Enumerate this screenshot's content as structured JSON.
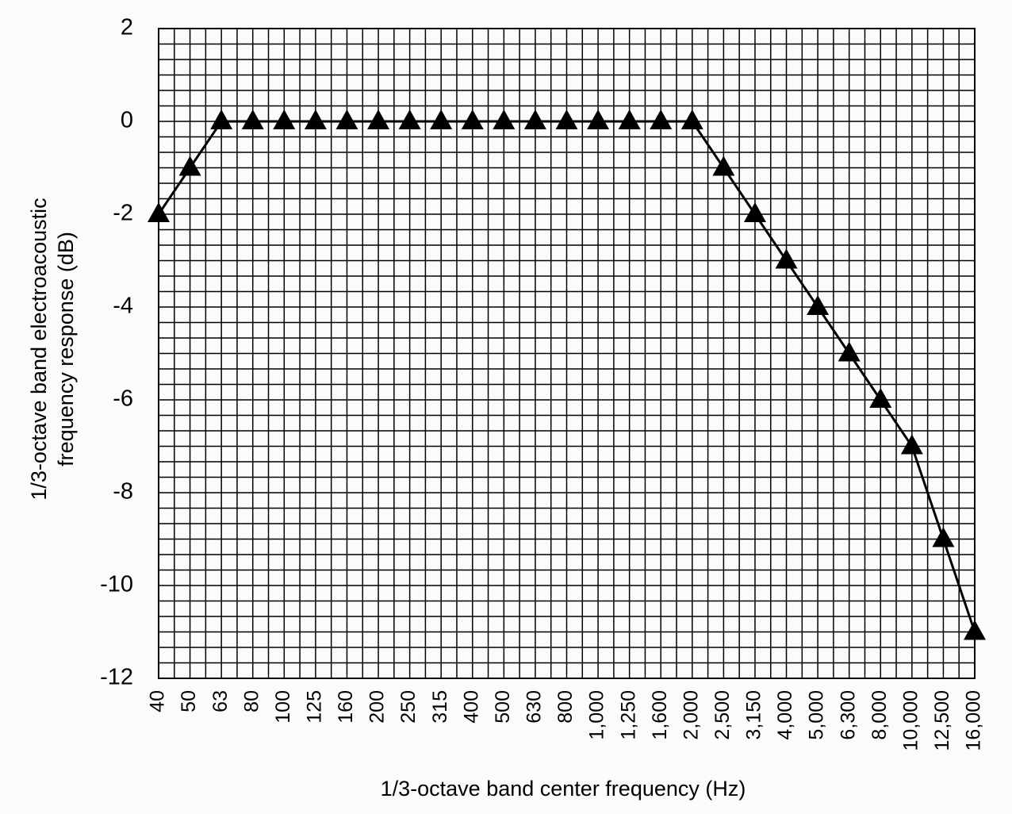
{
  "chart_data": {
    "type": "line",
    "xlabel": "1/3-octave band center frequency (Hz)",
    "ylabel": [
      "1/3-octave band electroacoustic",
      "frequency response (dB)"
    ],
    "categories": [
      "40",
      "50",
      "63",
      "80",
      "100",
      "125",
      "160",
      "200",
      "250",
      "315",
      "400",
      "500",
      "630",
      "800",
      "1,000",
      "1,250",
      "1,600",
      "2,000",
      "2,500",
      "3,150",
      "4,000",
      "5,000",
      "6,300",
      "8,000",
      "10,000",
      "12,500",
      "16,000"
    ],
    "series": [
      {
        "color": "#000000",
        "values": [
          -2,
          -1,
          0,
          0,
          0,
          0,
          0,
          0,
          0,
          0,
          0,
          0,
          0,
          0,
          0,
          0,
          0,
          0,
          -1,
          -2,
          -3,
          -4,
          -5,
          -6,
          -7,
          -9,
          -11
        ]
      }
    ],
    "ylim": [
      -12,
      2
    ],
    "yticks": [
      -12,
      -10,
      -8,
      -6,
      -4,
      -2,
      0,
      2
    ],
    "grid": true
  }
}
